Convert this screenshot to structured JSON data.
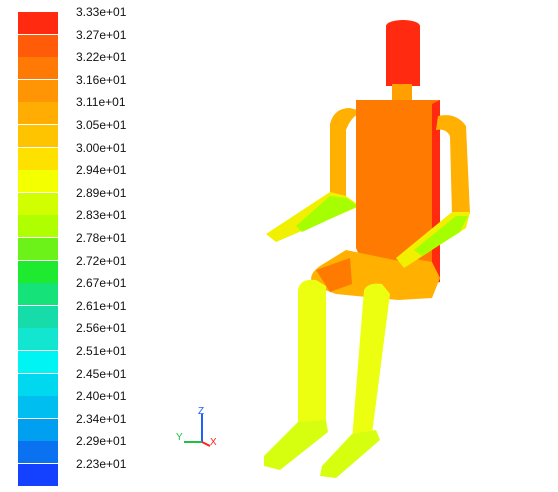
{
  "colorbar": {
    "labels": [
      "3.33e+01",
      "3.27e+01",
      "3.22e+01",
      "3.16e+01",
      "3.11e+01",
      "3.05e+01",
      "3.00e+01",
      "2.94e+01",
      "2.89e+01",
      "2.83e+01",
      "2.78e+01",
      "2.72e+01",
      "2.67e+01",
      "2.61e+01",
      "2.56e+01",
      "2.51e+01",
      "2.45e+01",
      "2.40e+01",
      "2.34e+01",
      "2.29e+01",
      "2.23e+01"
    ],
    "colors": [
      "#ff2a0f",
      "#ff5b08",
      "#ff7a05",
      "#ff9405",
      "#ffac03",
      "#ffc400",
      "#ffe100",
      "#f4ff00",
      "#d2ff00",
      "#b0ff00",
      "#6cf218",
      "#1eea2f",
      "#16e27a",
      "#15dca8",
      "#12e6d0",
      "#00f4f4",
      "#00d8f0",
      "#00bff0",
      "#009ff0",
      "#0a72f0",
      "#1440ff"
    ]
  },
  "triad": {
    "z_label": "Z",
    "y_label": "Y",
    "x_label": "X",
    "z_color": "#2060ff",
    "y_color": "#20c040",
    "x_color": "#ff2020"
  },
  "model": {
    "head_color": "#ff2a10",
    "neck_color": "#ffa000",
    "torso_color": "#ff7a00",
    "upper_arm_color": "#ffb000",
    "forearm_color": "#f0f000",
    "hand_color": "#a6ff00",
    "thigh_color": "#ffb000",
    "lower_leg_color": "#ecff10",
    "foot_color": "#d6ff10"
  }
}
